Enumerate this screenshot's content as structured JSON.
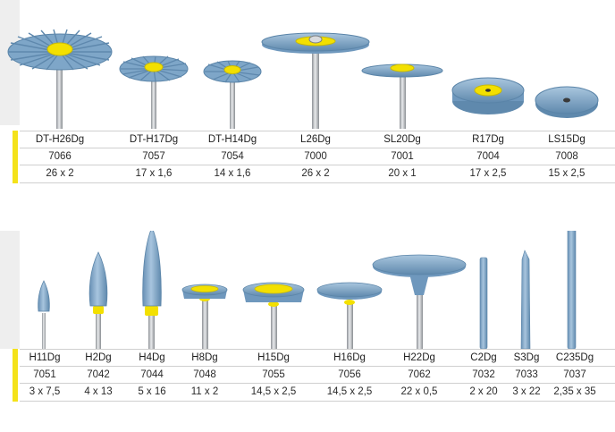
{
  "colors": {
    "accent": "#f4e21a",
    "rubber": "#7ea6c8",
    "shank": "#b8bcc0"
  },
  "top_table": {
    "items": [
      {
        "name": "DT-H26Dg",
        "number": "7066",
        "size": "26 x 2"
      },
      {
        "name": "DT-H17Dg",
        "number": "7057",
        "size": "17 x 1,6"
      },
      {
        "name": "DT-H14Dg",
        "number": "7054",
        "size": "14 x 1,6"
      },
      {
        "name": "L26Dg",
        "number": "7000",
        "size": "26 x 2"
      },
      {
        "name": "SL20Dg",
        "number": "7001",
        "size": "20 x 1"
      },
      {
        "name": "R17Dg",
        "number": "7004",
        "size": "17 x 2,5"
      },
      {
        "name": "LS15Dg",
        "number": "7008",
        "size": "15 x 2,5"
      }
    ]
  },
  "bottom_table": {
    "items": [
      {
        "name": "H11Dg",
        "number": "7051",
        "size": "3 x 7,5"
      },
      {
        "name": "H2Dg",
        "number": "7042",
        "size": "4 x 13"
      },
      {
        "name": "H4Dg",
        "number": "7044",
        "size": "5 x 16"
      },
      {
        "name": "H8Dg",
        "number": "7048",
        "size": "11 x 2"
      },
      {
        "name": "H15Dg",
        "number": "7055",
        "size": "14,5 x 2,5"
      },
      {
        "name": "H16Dg",
        "number": "7056",
        "size": "14,5 x 2,5"
      },
      {
        "name": "H22Dg",
        "number": "7062",
        "size": "22 x 0,5"
      },
      {
        "name": "C2Dg",
        "number": "7032",
        "size": "2 x 20"
      },
      {
        "name": "S3Dg",
        "number": "7033",
        "size": "3 x 22"
      },
      {
        "name": "C235Dg",
        "number": "7037",
        "size": "2,35 x 35"
      }
    ]
  }
}
